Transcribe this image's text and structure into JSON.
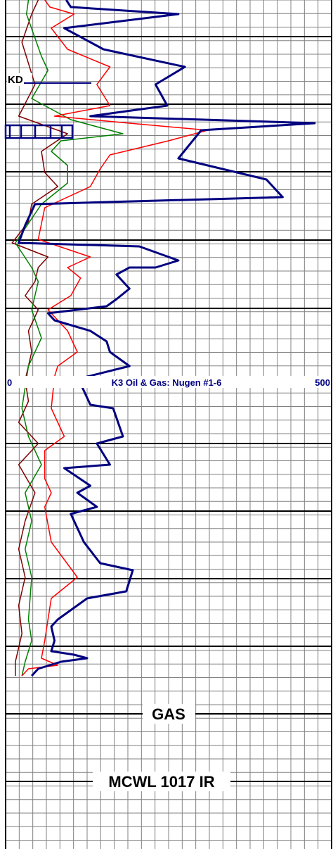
{
  "chart_data": {
    "type": "line",
    "title": "K3 Oil & Gas: Nugen #1-6",
    "x_axis": {
      "min_label": "0",
      "max_label": "500",
      "min": 0,
      "max": 500
    },
    "formation_marker": "KD",
    "track_labels": [
      "GAS",
      "MCWL 1017 IR"
    ],
    "colors": {
      "navy": "#000080",
      "red": "#ff0000",
      "green": "#008000",
      "brown": "#800000",
      "marker": "#000080",
      "grid": "#808080",
      "major_grid": "#000000"
    },
    "series": [
      {
        "color_key": "navy",
        "values": [
          [
            93,
            0
          ],
          [
            100,
            10
          ],
          [
            265,
            20
          ],
          [
            90,
            40
          ],
          [
            150,
            70
          ],
          [
            275,
            95
          ],
          [
            230,
            120
          ],
          [
            248,
            150
          ],
          [
            130,
            165
          ],
          [
            474,
            175
          ],
          [
            300,
            185
          ],
          [
            265,
            225
          ],
          [
            400,
            255
          ],
          [
            425,
            280
          ],
          [
            45,
            290
          ],
          [
            30,
            320
          ],
          [
            20,
            345
          ],
          [
            205,
            350
          ],
          [
            265,
            370
          ],
          [
            230,
            380
          ],
          [
            190,
            380
          ],
          [
            170,
            390
          ],
          [
            190,
            410
          ],
          [
            170,
            425
          ],
          [
            155,
            435
          ],
          [
            65,
            445
          ],
          [
            75,
            455
          ],
          [
            130,
            470
          ],
          [
            155,
            485
          ],
          [
            160,
            500
          ],
          [
            190,
            520
          ],
          [
            125,
            535
          ],
          [
            115,
            545
          ],
          [
            130,
            575
          ],
          [
            165,
            580
          ],
          [
            180,
            620
          ],
          [
            140,
            630
          ],
          [
            160,
            660
          ],
          [
            90,
            665
          ],
          [
            130,
            690
          ],
          [
            110,
            700
          ],
          [
            140,
            720
          ],
          [
            100,
            730
          ],
          [
            120,
            770
          ],
          [
            145,
            800
          ],
          [
            195,
            810
          ],
          [
            185,
            840
          ],
          [
            125,
            850
          ],
          [
            80,
            880
          ],
          [
            70,
            890
          ],
          [
            75,
            910
          ],
          [
            70,
            925
          ],
          [
            105,
            930
          ],
          [
            125,
            935
          ],
          [
            85,
            940
          ],
          [
            50,
            950
          ],
          [
            40,
            960
          ]
        ]
      },
      {
        "color_key": "red",
        "values": [
          [
            60,
            0
          ],
          [
            68,
            10
          ],
          [
            105,
            20
          ],
          [
            70,
            40
          ],
          [
            95,
            70
          ],
          [
            160,
            95
          ],
          [
            140,
            120
          ],
          [
            160,
            150
          ],
          [
            75,
            165
          ],
          [
            190,
            175
          ],
          [
            310,
            185
          ],
          [
            250,
            200
          ],
          [
            160,
            220
          ],
          [
            145,
            240
          ],
          [
            130,
            265
          ],
          [
            60,
            295
          ],
          [
            50,
            340
          ],
          [
            130,
            365
          ],
          [
            95,
            380
          ],
          [
            115,
            395
          ],
          [
            100,
            420
          ],
          [
            65,
            440
          ],
          [
            95,
            470
          ],
          [
            110,
            500
          ],
          [
            80,
            520
          ],
          [
            75,
            535
          ],
          [
            70,
            580
          ],
          [
            90,
            620
          ],
          [
            60,
            640
          ],
          [
            60,
            680
          ],
          [
            70,
            700
          ],
          [
            60,
            720
          ],
          [
            70,
            770
          ],
          [
            110,
            820
          ],
          [
            70,
            850
          ],
          [
            65,
            880
          ],
          [
            60,
            910
          ],
          [
            55,
            935
          ],
          [
            80,
            945
          ],
          [
            35,
            950
          ],
          [
            25,
            960
          ]
        ]
      },
      {
        "color_key": "green",
        "values": [
          [
            35,
            0
          ],
          [
            32,
            20
          ],
          [
            55,
            80
          ],
          [
            65,
            100
          ],
          [
            40,
            140
          ],
          [
            100,
            170
          ],
          [
            180,
            190
          ],
          [
            85,
            200
          ],
          [
            70,
            215
          ],
          [
            95,
            235
          ],
          [
            95,
            260
          ],
          [
            75,
            275
          ],
          [
            55,
            290
          ],
          [
            15,
            345
          ],
          [
            40,
            380
          ],
          [
            50,
            400
          ],
          [
            40,
            440
          ],
          [
            55,
            480
          ],
          [
            35,
            520
          ],
          [
            25,
            580
          ],
          [
            35,
            620
          ],
          [
            55,
            660
          ],
          [
            30,
            700
          ],
          [
            40,
            740
          ],
          [
            30,
            780
          ],
          [
            40,
            820
          ],
          [
            35,
            880
          ],
          [
            40,
            910
          ],
          [
            30,
            940
          ],
          [
            25,
            960
          ]
        ]
      },
      {
        "color_key": "brown",
        "values": [
          [
            50,
            0
          ],
          [
            40,
            20
          ],
          [
            25,
            60
          ],
          [
            45,
            120
          ],
          [
            20,
            165
          ],
          [
            50,
            175
          ],
          [
            95,
            190
          ],
          [
            55,
            215
          ],
          [
            60,
            245
          ],
          [
            80,
            265
          ],
          [
            40,
            290
          ],
          [
            35,
            315
          ],
          [
            10,
            345
          ],
          [
            65,
            365
          ],
          [
            50,
            380
          ],
          [
            45,
            400
          ],
          [
            30,
            420
          ],
          [
            50,
            440
          ],
          [
            35,
            470
          ],
          [
            40,
            500
          ],
          [
            30,
            540
          ],
          [
            35,
            570
          ],
          [
            20,
            600
          ],
          [
            50,
            630
          ],
          [
            20,
            660
          ],
          [
            45,
            700
          ],
          [
            30,
            740
          ],
          [
            20,
            780
          ],
          [
            30,
            820
          ],
          [
            20,
            860
          ],
          [
            25,
            900
          ],
          [
            15,
            940
          ],
          [
            15,
            960
          ]
        ]
      }
    ]
  }
}
